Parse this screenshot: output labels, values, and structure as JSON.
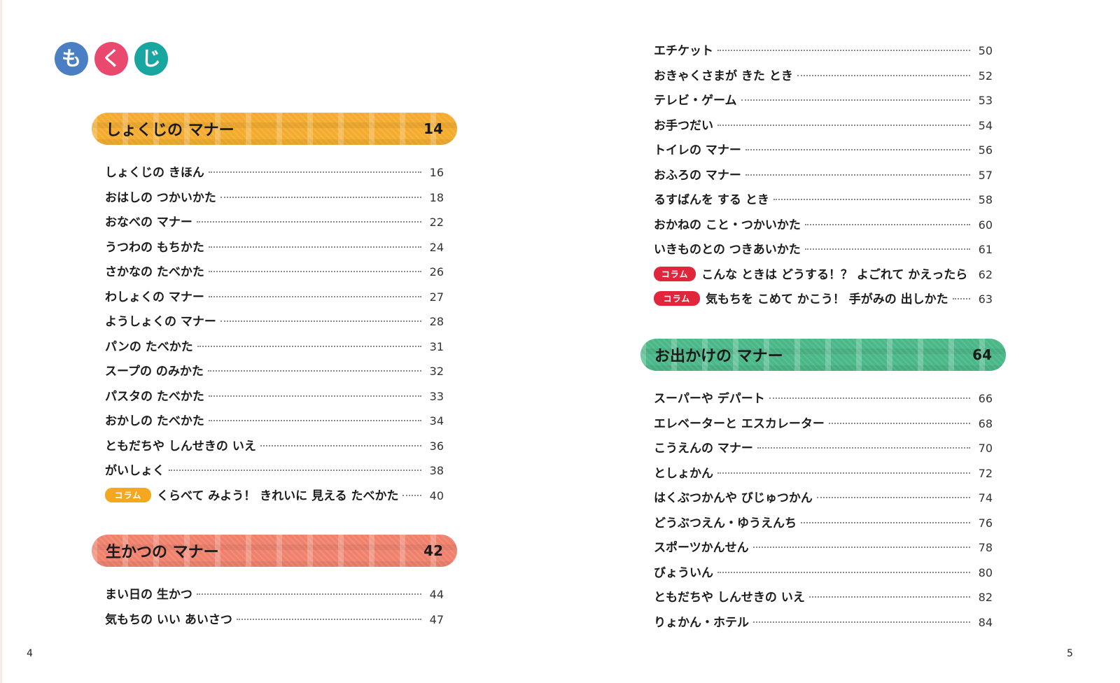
{
  "colors": {
    "title_blue": "#4a80c3",
    "title_pink": "#e9486f",
    "title_teal": "#19a6a0",
    "section_orange": "#f4ac2e",
    "section_salmon": "#f0826d",
    "section_green": "#4ab888",
    "badge_orange": "#f3a81f",
    "badge_red": "#e0263d"
  },
  "title": {
    "char1": "も",
    "char2": "く",
    "char3": "じ"
  },
  "sections": {
    "shokuji": {
      "title": "しょくじの マナー",
      "page": "14"
    },
    "seikatsu": {
      "title": "生かつの マナー",
      "page": "42"
    },
    "odekake": {
      "title": "お出かけの マナー",
      "page": "64"
    }
  },
  "shokuji_items": [
    {
      "label": "しょくじの きほん",
      "page": "16"
    },
    {
      "label": "おはしの つかいかた",
      "page": "18"
    },
    {
      "label": "おなべの マナー",
      "page": "22"
    },
    {
      "label": "うつわの もちかた",
      "page": "24"
    },
    {
      "label": "さかなの たべかた",
      "page": "26"
    },
    {
      "label": "わしょくの マナー",
      "page": "27"
    },
    {
      "label": "ようしょくの マナー",
      "page": "28"
    },
    {
      "label": "パンの たべかた",
      "page": "31"
    },
    {
      "label": "スープの のみかた",
      "page": "32"
    },
    {
      "label": "パスタの たべかた",
      "page": "33"
    },
    {
      "label": "おかしの たべかた",
      "page": "34"
    },
    {
      "label": "ともだちや しんせきの いえ",
      "page": "36"
    },
    {
      "label": "がいしょく",
      "page": "38"
    }
  ],
  "shokuji_column": {
    "badge": "コラム",
    "label": "くらべて みよう！ きれいに 見える たべかた",
    "page": "40"
  },
  "seikatsu_items_left": [
    {
      "label": "まい日の 生かつ",
      "page": "44"
    },
    {
      "label": "気もちの いい あいさつ",
      "page": "47"
    }
  ],
  "seikatsu_items_right": [
    {
      "label": "エチケット",
      "page": "50"
    },
    {
      "label": "おきゃくさまが きた とき",
      "page": "52"
    },
    {
      "label": "テレビ・ゲーム",
      "page": "53"
    },
    {
      "label": "お手つだい",
      "page": "54"
    },
    {
      "label": "トイレの マナー",
      "page": "56"
    },
    {
      "label": "おふろの マナー",
      "page": "57"
    },
    {
      "label": "るすばんを する とき",
      "page": "58"
    },
    {
      "label": "おかねの こと・つかいかた",
      "page": "60"
    },
    {
      "label": "いきものとの つきあいかた",
      "page": "61"
    }
  ],
  "seikatsu_columns": [
    {
      "badge": "コラム",
      "label": "こんな ときは どうする！？ よごれて かえったら",
      "page": "62"
    },
    {
      "badge": "コラム",
      "label": "気もちを こめて かこう！ 手がみの 出しかた",
      "page": "63"
    }
  ],
  "odekake_items": [
    {
      "label": "スーパーや デパート",
      "page": "66"
    },
    {
      "label": "エレベーターと エスカレーター",
      "page": "68"
    },
    {
      "label": "こうえんの マナー",
      "page": "70"
    },
    {
      "label": "としょかん",
      "page": "72"
    },
    {
      "label": "はくぶつかんや びじゅつかん",
      "page": "74"
    },
    {
      "label": "どうぶつえん・ゆうえんち",
      "page": "76"
    },
    {
      "label": "スポーツかんせん",
      "page": "78"
    },
    {
      "label": "びょういん",
      "page": "80"
    },
    {
      "label": "ともだちや しんせきの いえ",
      "page": "82"
    },
    {
      "label": "りょかん・ホテル",
      "page": "84"
    }
  ],
  "footer": {
    "left_page": "4",
    "right_page": "5"
  }
}
